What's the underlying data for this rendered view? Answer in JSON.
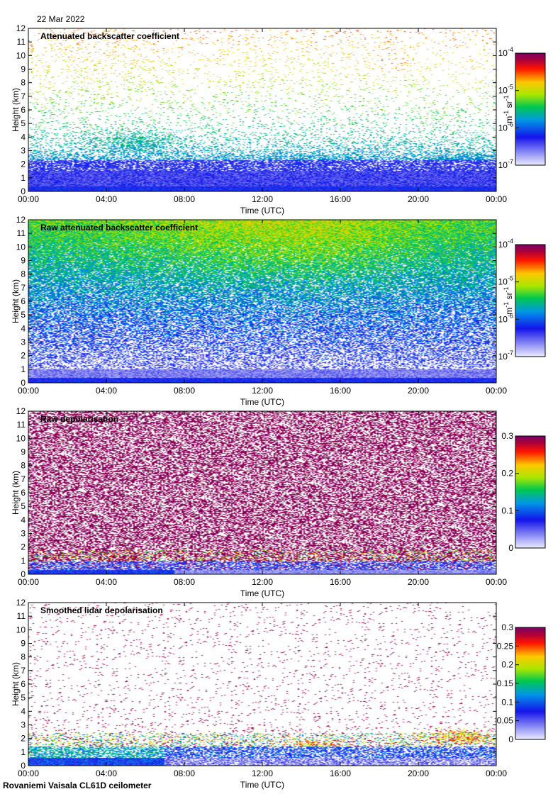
{
  "date": "22 Mar 2022",
  "footer": "Rovaniemi Vaisala CL61D ceilometer",
  "chart_data": [
    {
      "type": "heatmap",
      "title": "Attenuated backscatter coefficient",
      "xlabel": "Time (UTC)",
      "ylabel": "Height (km)",
      "xticks": [
        "00:00",
        "04:00",
        "08:00",
        "12:00",
        "16:00",
        "20:00",
        "00:00"
      ],
      "xlim_hours": [
        0,
        24
      ],
      "ylim": [
        0,
        12
      ],
      "yticks": [
        0,
        1,
        2,
        3,
        4,
        5,
        6,
        7,
        8,
        9,
        10,
        11,
        12
      ],
      "colorbar": {
        "scale": "log",
        "range": [
          1e-07,
          0.0001
        ],
        "unit": "m-1 sr-1",
        "ticks": [
          {
            "base": "10",
            "exp": "-4"
          },
          {
            "base": "10",
            "exp": "-5"
          },
          {
            "base": "10",
            "exp": "-6"
          },
          {
            "base": "10",
            "exp": "-7"
          }
        ]
      }
    },
    {
      "type": "heatmap",
      "title": "Raw attenuated backscatter coefficient",
      "xlabel": "Time (UTC)",
      "ylabel": "Height (km)",
      "xticks": [
        "00:00",
        "04:00",
        "08:00",
        "12:00",
        "16:00",
        "20:00",
        "00:00"
      ],
      "xlim_hours": [
        0,
        24
      ],
      "ylim": [
        0,
        12
      ],
      "yticks": [
        0,
        1,
        2,
        3,
        4,
        5,
        6,
        7,
        8,
        9,
        10,
        11,
        12
      ],
      "colorbar": {
        "scale": "log",
        "range": [
          1e-07,
          0.0001
        ],
        "unit": "m-1 sr-1",
        "ticks": [
          {
            "base": "10",
            "exp": "-4"
          },
          {
            "base": "10",
            "exp": "-5"
          },
          {
            "base": "10",
            "exp": "-6"
          },
          {
            "base": "10",
            "exp": "-7"
          }
        ]
      }
    },
    {
      "type": "heatmap",
      "title": "Raw depolarisation",
      "xlabel": "Time (UTC)",
      "ylabel": "Height (km)",
      "xticks": [
        "00:00",
        "04:00",
        "08:00",
        "12:00",
        "16:00",
        "20:00",
        "00:00"
      ],
      "xlim_hours": [
        0,
        24
      ],
      "ylim": [
        0,
        12
      ],
      "yticks": [
        0,
        1,
        2,
        3,
        4,
        5,
        6,
        7,
        8,
        9,
        10,
        11,
        12
      ],
      "colorbar": {
        "scale": "linear",
        "range": [
          0,
          0.3
        ],
        "ticks": [
          "0.3",
          "0.2",
          "0.1",
          "0"
        ]
      }
    },
    {
      "type": "heatmap",
      "title": "Smoothed lidar depolarisation",
      "xlabel": "Time (UTC)",
      "ylabel": "Height (km)",
      "xticks": [
        "00:00",
        "04:00",
        "08:00",
        "12:00",
        "16:00",
        "20:00",
        "00:00"
      ],
      "xlim_hours": [
        0,
        24
      ],
      "ylim": [
        0,
        12
      ],
      "yticks": [
        0,
        1,
        2,
        3,
        4,
        5,
        6,
        7,
        8,
        9,
        10,
        11,
        12
      ],
      "colorbar": {
        "scale": "linear",
        "range": [
          0,
          0.3
        ],
        "ticks": [
          "0.3",
          "0.25",
          "0.2",
          "0.15",
          "0.1",
          "0.05",
          "0"
        ]
      }
    }
  ]
}
